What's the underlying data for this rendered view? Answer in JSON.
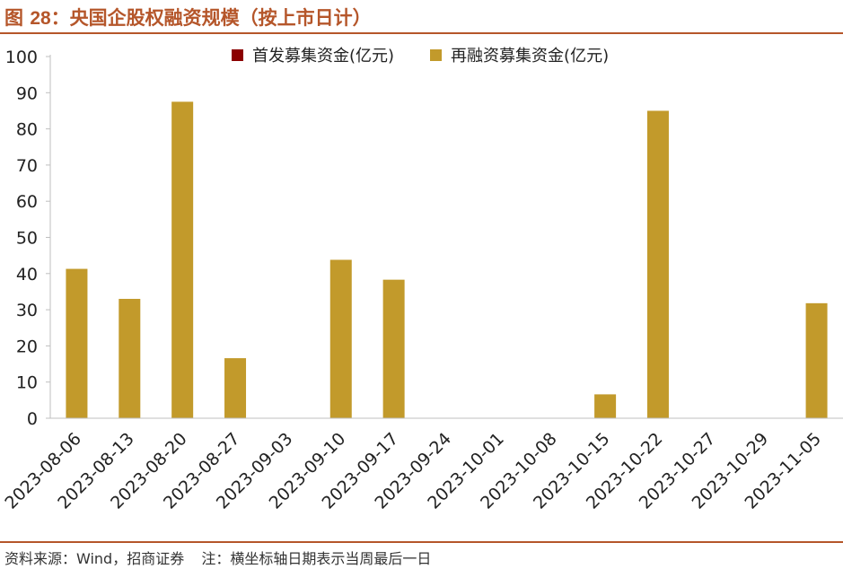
{
  "figure": {
    "title_prefix": "图",
    "title_number": "28",
    "title_colon": "：",
    "title_text": "央国企股权融资规模（按上市日计）"
  },
  "source": {
    "source_text": "资料来源：Wind，招商证券",
    "note_text": "注：横坐标轴日期表示当周最后一日"
  },
  "colors": {
    "accent": "#b5562a",
    "ipo": "#8b0000",
    "refinancing": "#c29a2b",
    "axis": "#bfbfbf",
    "text": "#222222"
  },
  "chart_data": {
    "type": "bar",
    "title": "央国企股权融资规模（按上市日计）",
    "xlabel": "",
    "ylabel": "",
    "ylim": [
      0,
      100
    ],
    "yticks": [
      0,
      10,
      20,
      30,
      40,
      50,
      60,
      70,
      80,
      90,
      100
    ],
    "grid": false,
    "legend_position": "top",
    "categories": [
      "2023-08-06",
      "2023-08-13",
      "2023-08-20",
      "2023-08-27",
      "2023-09-03",
      "2023-09-10",
      "2023-09-17",
      "2023-09-24",
      "2023-10-01",
      "2023-10-08",
      "2023-10-15",
      "2023-10-22",
      "2023-10-27",
      "2023-10-29",
      "2023-11-05"
    ],
    "series": [
      {
        "name": "首发募集资金(亿元)",
        "color": "#8b0000",
        "values": [
          0,
          0,
          0,
          0,
          0,
          0,
          0,
          0,
          0,
          0,
          0,
          0,
          0,
          0,
          0
        ]
      },
      {
        "name": "再融资募集资金(亿元)",
        "color": "#c29a2b",
        "values": [
          41.3,
          33.0,
          87.5,
          16.6,
          0,
          43.8,
          38.3,
          0,
          0,
          0,
          6.6,
          85.0,
          0,
          0,
          31.8
        ]
      }
    ]
  }
}
